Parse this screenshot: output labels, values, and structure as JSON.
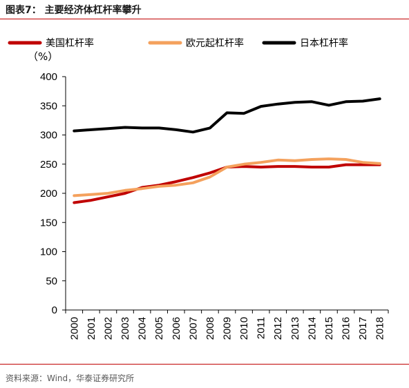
{
  "figure_title": "图表7：  主要经济体杠杆率攀升",
  "source_note": "资料来源：Wind，华泰证券研究所",
  "colors": {
    "us": "#c00000",
    "eu": "#f4a15d",
    "jp": "#000000",
    "rule": "#c00000"
  },
  "chart_data": {
    "type": "line",
    "title": "",
    "xlabel": "",
    "ylabel": "（%）",
    "ylim": [
      0,
      400
    ],
    "yticks": [
      0,
      50,
      100,
      150,
      200,
      250,
      300,
      350,
      400
    ],
    "grid": false,
    "legend_position": "top",
    "x": [
      "2000",
      "2001",
      "2002",
      "2003",
      "2004",
      "2005",
      "2006",
      "2007",
      "2008",
      "2009",
      "2010",
      "2011",
      "2012",
      "2013",
      "2014",
      "2015",
      "2016",
      "2017",
      "2018"
    ],
    "series": [
      {
        "name": "美国杠杆率",
        "color": "#c00000",
        "values": [
          184,
          188,
          194,
          200,
          210,
          214,
          220,
          227,
          235,
          245,
          246,
          245,
          246,
          246,
          245,
          245,
          249,
          249,
          249
        ]
      },
      {
        "name": "欧元起杠杆率",
        "color": "#f4a15d",
        "values": [
          196,
          198,
          200,
          205,
          208,
          212,
          214,
          218,
          228,
          245,
          250,
          253,
          257,
          256,
          258,
          259,
          258,
          253,
          251
        ]
      },
      {
        "name": "日本杠杆率",
        "color": "#000000",
        "values": [
          307,
          309,
          311,
          313,
          312,
          312,
          309,
          305,
          312,
          338,
          337,
          349,
          353,
          356,
          357,
          351,
          357,
          358,
          362
        ]
      }
    ]
  }
}
